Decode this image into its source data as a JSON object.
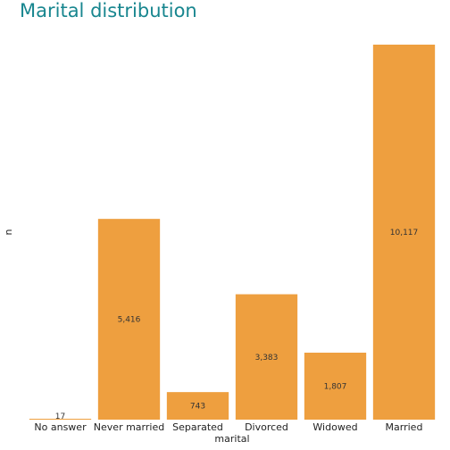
{
  "chart_data": {
    "type": "bar",
    "title": "Marital distribution",
    "xlabel": "marital",
    "ylabel": "n",
    "categories": [
      "No answer",
      "Never married",
      "Separated",
      "Divorced",
      "Widowed",
      "Married"
    ],
    "values": [
      17,
      5416,
      743,
      3383,
      1807,
      10117
    ],
    "value_labels": [
      "17",
      "5,416",
      "743",
      "3,383",
      "1,807",
      "10,117"
    ],
    "ylim": [
      0,
      10117
    ],
    "bar_color": "#ee9f3f",
    "title_color": "#18868f",
    "grid": false,
    "legend": "none"
  }
}
